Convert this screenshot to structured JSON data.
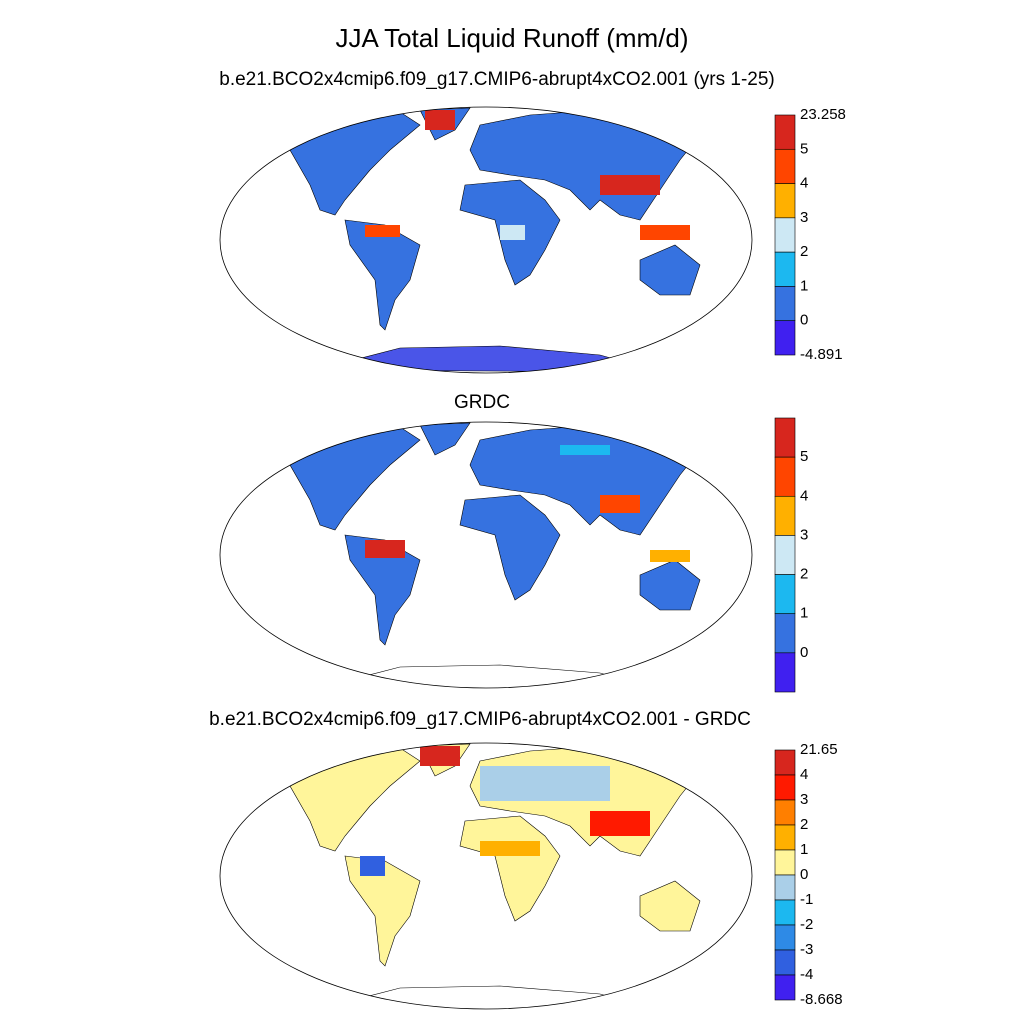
{
  "title": "JJA Total Liquid Runoff (mm/d)",
  "panels": [
    {
      "subtitle": "b.e21.BCO2x4cmip6.f09_g17.CMIP6-abrupt4xCO2.001 (yrs 1-25)",
      "colorbar": {
        "colors": [
          "#d7261e",
          "#ff4500",
          "#ffb000",
          "#cde8f4",
          "#1cb8f0",
          "#3672e0",
          "#4020f0"
        ],
        "labels": [
          "23.258",
          "5",
          "4",
          "3",
          "2",
          "1",
          "0",
          "-4.891"
        ]
      }
    },
    {
      "subtitle": "GRDC",
      "colorbar": {
        "colors": [
          "#d7261e",
          "#ff4500",
          "#ffb000",
          "#cde8f4",
          "#1cb8f0",
          "#3672e0",
          "#4020f0"
        ],
        "labels": [
          "5",
          "4",
          "3",
          "2",
          "1",
          "0"
        ]
      }
    },
    {
      "subtitle": "b.e21.BCO2x4cmip6.f09_g17.CMIP6-abrupt4xCO2.001 - GRDC",
      "colorbar": {
        "colors": [
          "#d7261e",
          "#ff1a00",
          "#ff7f00",
          "#ffb000",
          "#fff59a",
          "#aacfe8",
          "#1cb8f0",
          "#2e8ae6",
          "#3060e0",
          "#4020f0"
        ],
        "labels": [
          "21.65",
          "4",
          "3",
          "2",
          "1",
          "0",
          "-1",
          "-2",
          "-3",
          "-4",
          "-8.668"
        ]
      }
    }
  ]
}
